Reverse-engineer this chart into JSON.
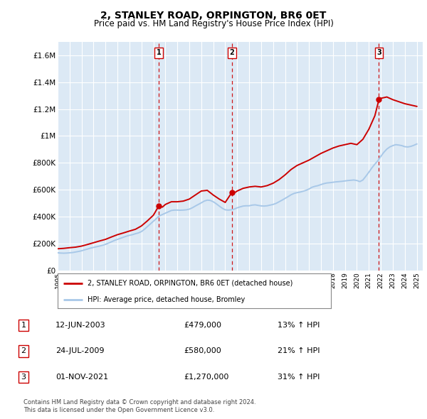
{
  "title": "2, STANLEY ROAD, ORPINGTON, BR6 0ET",
  "subtitle": "Price paid vs. HM Land Registry's House Price Index (HPI)",
  "ylim": [
    0,
    1700000
  ],
  "yticks": [
    0,
    200000,
    400000,
    600000,
    800000,
    1000000,
    1200000,
    1400000,
    1600000
  ],
  "ytick_labels": [
    "£0",
    "£200K",
    "£400K",
    "£600K",
    "£800K",
    "£1M",
    "£1.2M",
    "£1.4M",
    "£1.6M"
  ],
  "xlim_start": 1995.0,
  "xlim_end": 2025.5,
  "background_color": "#ffffff",
  "plot_bg_color": "#dce9f5",
  "grid_color": "#ffffff",
  "legend_label_red": "2, STANLEY ROAD, ORPINGTON, BR6 0ET (detached house)",
  "legend_label_blue": "HPI: Average price, detached house, Bromley",
  "sale_markers": [
    {
      "num": 1,
      "year": 2003.45,
      "price": 479000,
      "date": "12-JUN-2003",
      "pct": "13%",
      "arrow": "↑"
    },
    {
      "num": 2,
      "year": 2009.56,
      "price": 580000,
      "date": "24-JUL-2009",
      "pct": "21%",
      "arrow": "↑"
    },
    {
      "num": 3,
      "year": 2021.84,
      "price": 1270000,
      "date": "01-NOV-2021",
      "pct": "31%",
      "arrow": "↑"
    }
  ],
  "footer_line1": "Contains HM Land Registry data © Crown copyright and database right 2024.",
  "footer_line2": "This data is licensed under the Open Government Licence v3.0.",
  "hpi_color": "#a8c8e8",
  "price_color": "#cc0000",
  "vline_color": "#cc0000",
  "hpi_data_x": [
    1995.0,
    1995.25,
    1995.5,
    1995.75,
    1996.0,
    1996.25,
    1996.5,
    1996.75,
    1997.0,
    1997.25,
    1997.5,
    1997.75,
    1998.0,
    1998.25,
    1998.5,
    1998.75,
    1999.0,
    1999.25,
    1999.5,
    1999.75,
    2000.0,
    2000.25,
    2000.5,
    2000.75,
    2001.0,
    2001.25,
    2001.5,
    2001.75,
    2002.0,
    2002.25,
    2002.5,
    2002.75,
    2003.0,
    2003.25,
    2003.5,
    2003.75,
    2004.0,
    2004.25,
    2004.5,
    2004.75,
    2005.0,
    2005.25,
    2005.5,
    2005.75,
    2006.0,
    2006.25,
    2006.5,
    2006.75,
    2007.0,
    2007.25,
    2007.5,
    2007.75,
    2008.0,
    2008.25,
    2008.5,
    2008.75,
    2009.0,
    2009.25,
    2009.5,
    2009.75,
    2010.0,
    2010.25,
    2010.5,
    2010.75,
    2011.0,
    2011.25,
    2011.5,
    2011.75,
    2012.0,
    2012.25,
    2012.5,
    2012.75,
    2013.0,
    2013.25,
    2013.5,
    2013.75,
    2014.0,
    2014.25,
    2014.5,
    2014.75,
    2015.0,
    2015.25,
    2015.5,
    2015.75,
    2016.0,
    2016.25,
    2016.5,
    2016.75,
    2017.0,
    2017.25,
    2017.5,
    2017.75,
    2018.0,
    2018.25,
    2018.5,
    2018.75,
    2019.0,
    2019.25,
    2019.5,
    2019.75,
    2020.0,
    2020.25,
    2020.5,
    2020.75,
    2021.0,
    2021.25,
    2021.5,
    2021.75,
    2022.0,
    2022.25,
    2022.5,
    2022.75,
    2023.0,
    2023.25,
    2023.5,
    2023.75,
    2024.0,
    2024.25,
    2024.5,
    2024.75,
    2025.0
  ],
  "hpi_data_y": [
    130000,
    128000,
    127000,
    128000,
    130000,
    132000,
    136000,
    140000,
    145000,
    152000,
    158000,
    165000,
    170000,
    175000,
    180000,
    186000,
    193000,
    202000,
    212000,
    222000,
    230000,
    238000,
    246000,
    254000,
    260000,
    265000,
    272000,
    278000,
    288000,
    305000,
    325000,
    345000,
    365000,
    385000,
    405000,
    415000,
    425000,
    435000,
    445000,
    448000,
    448000,
    447000,
    448000,
    450000,
    455000,
    465000,
    478000,
    490000,
    502000,
    515000,
    522000,
    520000,
    510000,
    495000,
    478000,
    462000,
    450000,
    448000,
    450000,
    455000,
    465000,
    472000,
    478000,
    480000,
    480000,
    485000,
    487000,
    483000,
    479000,
    478000,
    480000,
    485000,
    490000,
    498000,
    510000,
    522000,
    535000,
    548000,
    562000,
    572000,
    578000,
    582000,
    588000,
    595000,
    605000,
    618000,
    625000,
    630000,
    638000,
    645000,
    650000,
    652000,
    655000,
    658000,
    660000,
    662000,
    665000,
    668000,
    670000,
    672000,
    668000,
    660000,
    672000,
    700000,
    730000,
    762000,
    790000,
    815000,
    848000,
    878000,
    902000,
    918000,
    928000,
    935000,
    932000,
    928000,
    920000,
    918000,
    922000,
    930000,
    940000
  ],
  "price_data_x": [
    1995.0,
    1995.5,
    1996.0,
    1996.5,
    1997.0,
    1997.5,
    1998.0,
    1998.5,
    1999.0,
    1999.5,
    2000.0,
    2000.5,
    2001.0,
    2001.5,
    2002.0,
    2002.5,
    2003.0,
    2003.45,
    2003.75,
    2004.0,
    2004.5,
    2005.0,
    2005.5,
    2006.0,
    2006.5,
    2007.0,
    2007.5,
    2008.0,
    2008.5,
    2009.0,
    2009.56,
    2009.75,
    2010.0,
    2010.5,
    2011.0,
    2011.5,
    2012.0,
    2012.5,
    2013.0,
    2013.5,
    2014.0,
    2014.5,
    2015.0,
    2015.5,
    2016.0,
    2016.5,
    2017.0,
    2017.5,
    2018.0,
    2018.5,
    2019.0,
    2019.5,
    2020.0,
    2020.5,
    2021.0,
    2021.5,
    2021.84,
    2022.0,
    2022.5,
    2023.0,
    2023.5,
    2024.0,
    2024.5,
    2025.0
  ],
  "price_data_y": [
    160000,
    163000,
    168000,
    172000,
    180000,
    192000,
    205000,
    218000,
    230000,
    248000,
    265000,
    278000,
    292000,
    305000,
    330000,
    368000,
    410000,
    479000,
    470000,
    490000,
    510000,
    510000,
    515000,
    530000,
    560000,
    590000,
    595000,
    560000,
    530000,
    505000,
    580000,
    575000,
    590000,
    610000,
    620000,
    625000,
    620000,
    630000,
    648000,
    675000,
    710000,
    750000,
    780000,
    800000,
    820000,
    845000,
    870000,
    890000,
    910000,
    925000,
    935000,
    945000,
    935000,
    975000,
    1050000,
    1150000,
    1270000,
    1280000,
    1290000,
    1270000,
    1255000,
    1240000,
    1230000,
    1220000
  ]
}
